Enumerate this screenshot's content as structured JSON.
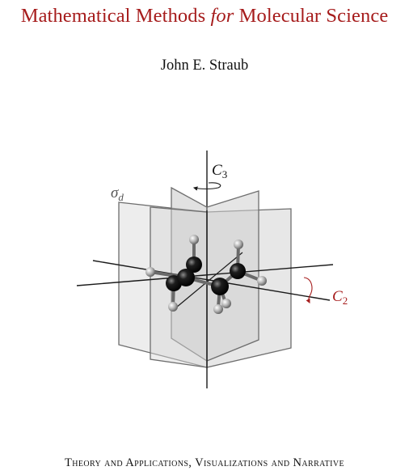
{
  "cover": {
    "title_part1": "Mathematical Methods ",
    "title_emph": "for",
    "title_part2": " Molecular Science",
    "author": "John E. Straub",
    "subtitle": "Theory and Applications, Visualizations and Narrative"
  },
  "figure": {
    "label_c3_base": "C",
    "label_c3_sub": "3",
    "label_sigma_base": "σ",
    "label_sigma_sub": "d",
    "label_c2_base": "C",
    "label_c2_sub": "2",
    "colors": {
      "accent": "#a61c1c",
      "plane_fill": "#d9d9d9",
      "plane_edge": "#6e6e6e",
      "axis": "#1a1a1a",
      "carbon": "#0d0d0d",
      "hydrogen": "#b5b5b5"
    }
  }
}
